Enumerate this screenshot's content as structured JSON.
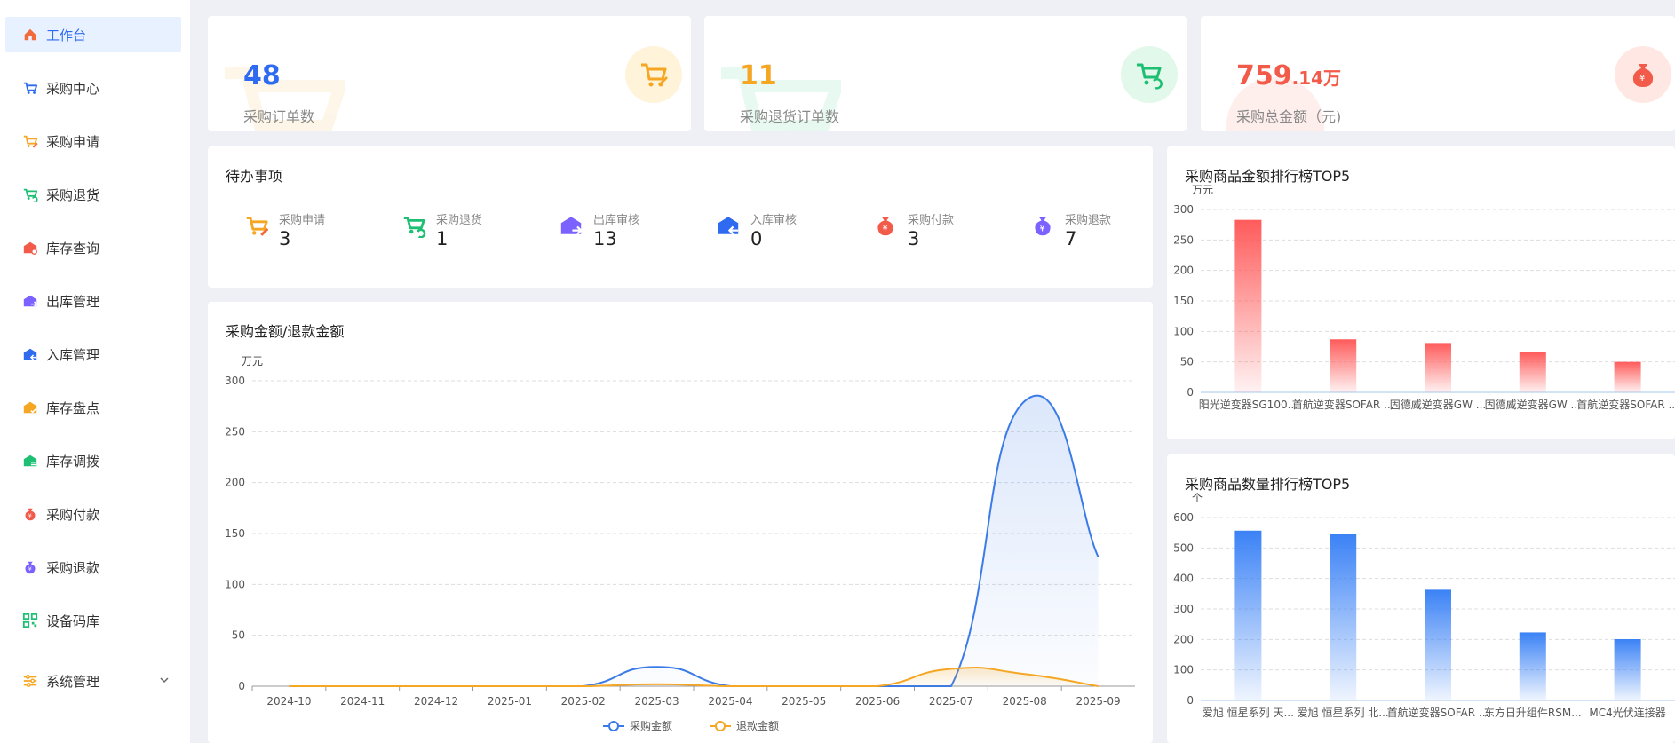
{
  "sidebar": {
    "items": [
      {
        "label": "工作台",
        "icon": "home-icon",
        "color": "#f26b3a",
        "active": true
      },
      {
        "label": "采购中心",
        "icon": "cart-icon",
        "color": "#2f6bf0"
      },
      {
        "label": "采购申请",
        "icon": "cart-edit-icon",
        "color": "#f5a623"
      },
      {
        "label": "采购退货",
        "icon": "cart-return-icon",
        "color": "#1dbf73"
      },
      {
        "label": "库存查询",
        "icon": "inventory-search-icon",
        "color": "#f25a4a"
      },
      {
        "label": "出库管理",
        "icon": "outbound-icon",
        "color": "#7b61ff"
      },
      {
        "label": "入库管理",
        "icon": "inbound-icon",
        "color": "#2f6bf0"
      },
      {
        "label": "库存盘点",
        "icon": "inventory-check-icon",
        "color": "#f5a623"
      },
      {
        "label": "库存调拨",
        "icon": "transfer-icon",
        "color": "#1dbf73"
      },
      {
        "label": "采购付款",
        "icon": "payment-icon",
        "color": "#f25a4a"
      },
      {
        "label": "采购退款",
        "icon": "refund-icon",
        "color": "#7b61ff"
      },
      {
        "label": "设备码库",
        "icon": "qr-code-icon",
        "color": "#1dbf73"
      },
      {
        "label": "系统管理",
        "icon": "settings-icon",
        "color": "#f5a623",
        "expandable": true
      }
    ]
  },
  "stats": [
    {
      "value": "48",
      "suffix": "",
      "label": "采购订单数",
      "color": "#2f6bf0",
      "bg": "#fff3d9",
      "icon": "cart-edit-icon"
    },
    {
      "value": "11",
      "suffix": "",
      "label": "采购退货订单数",
      "color": "#f5a623",
      "bg": "#e2f8ea",
      "icon": "cart-return-icon"
    },
    {
      "value": "759",
      "suffix": ".14万",
      "label": "采购总金额（元)",
      "color": "#f25a4a",
      "bg": "#ffe8e4",
      "icon": "money-bag-icon"
    }
  ],
  "todo": {
    "title": "待办事项",
    "items": [
      {
        "label": "采购申请",
        "value": "3",
        "icon": "cart-edit-icon"
      },
      {
        "label": "采购退货",
        "value": "1",
        "icon": "cart-return-icon"
      },
      {
        "label": "出库审核",
        "value": "13",
        "icon": "outbound-icon"
      },
      {
        "label": "入库审核",
        "value": "0",
        "icon": "inbound-icon"
      },
      {
        "label": "采购付款",
        "value": "3",
        "icon": "payment-icon"
      },
      {
        "label": "采购退款",
        "value": "7",
        "icon": "refund-icon"
      }
    ]
  },
  "chart_data": [
    {
      "type": "line",
      "title": "采购金额/退款金额",
      "ylabel": "万元",
      "ylim": [
        0,
        300
      ],
      "yticks": [
        0,
        50,
        100,
        150,
        200,
        250,
        300
      ],
      "x": [
        "2024-10",
        "2024-11",
        "2024-12",
        "2025-01",
        "2025-02",
        "2025-03",
        "2025-04",
        "2025-05",
        "2025-06",
        "2025-07",
        "2025-08",
        "2025-09"
      ],
      "series": [
        {
          "name": "采购金额",
          "color": "#3b7be8",
          "values": [
            0,
            0,
            0,
            0,
            0,
            19,
            0,
            0,
            0,
            0,
            280,
            127
          ]
        },
        {
          "name": "退款金额",
          "color": "#f5a623",
          "values": [
            0,
            0,
            0,
            0,
            0,
            2,
            0,
            0,
            0,
            17,
            12,
            0
          ]
        }
      ],
      "legend": "bottom",
      "grid": true
    },
    {
      "type": "bar",
      "title": "采购商品金额排行榜TOP5",
      "ylabel": "万元",
      "ylim": [
        0,
        300
      ],
      "yticks": [
        0,
        50,
        100,
        150,
        200,
        250,
        300
      ],
      "categories": [
        "阳光逆变器SG100...",
        "首航逆变器SOFAR ...",
        "固德威逆变器GW ...",
        "固德威逆变器GW ...",
        "首航逆变器SOFAR ..."
      ],
      "values": [
        283,
        87,
        81,
        66,
        50
      ],
      "color": "#ff5b5b",
      "grid": true
    },
    {
      "type": "bar",
      "title": "采购商品数量排行榜TOP5",
      "ylabel": "个",
      "ylim": [
        0,
        600
      ],
      "yticks": [
        0,
        100,
        200,
        300,
        400,
        500,
        600
      ],
      "categories": [
        "爱旭  恒星系列 天...",
        "爱旭  恒星系列 北...",
        "首航逆变器SOFAR ...",
        "东方日升组件RSM...",
        "MC4光伏连接器"
      ],
      "values": [
        557,
        545,
        363,
        223,
        201
      ],
      "color": "#3b82f6",
      "grid": true
    }
  ]
}
